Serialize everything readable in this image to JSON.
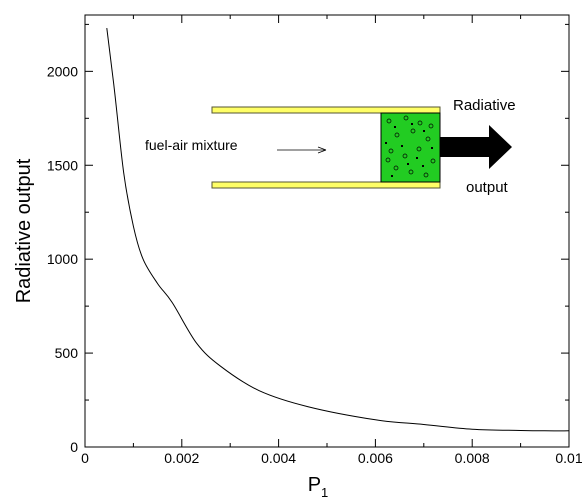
{
  "chart_data": {
    "type": "line",
    "xlabel": "P",
    "xlabel_sub": "1",
    "ylabel": "Radiative output",
    "xlim": [
      0,
      0.01
    ],
    "ylim": [
      0,
      2300
    ],
    "xticks": [
      0,
      0.002,
      0.004,
      0.006,
      0.008,
      0.01
    ],
    "xtick_labels": [
      "0",
      "0.002",
      "0.004",
      "0.006",
      "0.008",
      "0.01"
    ],
    "yticks": [
      0,
      500,
      1000,
      1500,
      2000
    ],
    "ytick_labels": [
      "0",
      "500",
      "1000",
      "1500",
      "2000"
    ],
    "grid": false,
    "series": [
      {
        "x": [
          0.00045,
          0.0006,
          0.0008,
          0.001,
          0.0012,
          0.0015,
          0.0018,
          0.0023,
          0.0028,
          0.0036,
          0.0046,
          0.006,
          0.007,
          0.008,
          0.009,
          0.0095,
          0.01
        ],
        "y": [
          2230,
          1920,
          1460,
          1175,
          1000,
          870,
          770,
          555,
          430,
          300,
          215,
          145,
          120,
          95,
          88,
          86,
          86
        ]
      }
    ],
    "annotations": {
      "mixture_label": "fuel-air mixture",
      "arrow_label_top": "Radiative",
      "arrow_label_bottom": "output"
    }
  },
  "colors": {
    "tube_fill": "#ffff66",
    "tube_stroke": "#555533",
    "chamber_fill": "#22cc22",
    "arrow_fill": "#000000"
  }
}
